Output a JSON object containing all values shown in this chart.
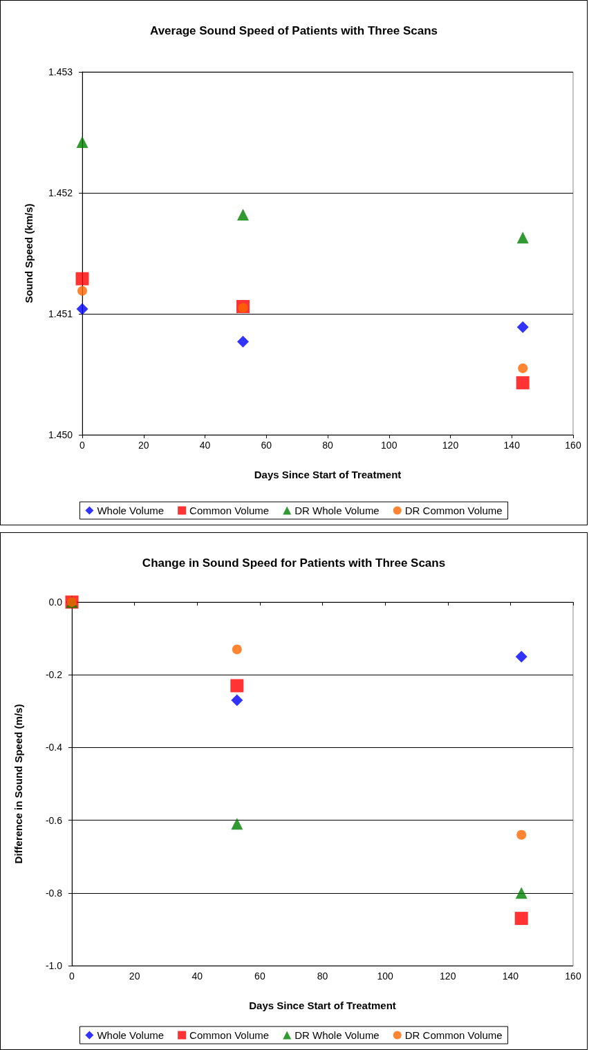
{
  "chart_data": [
    {
      "type": "scatter",
      "title": "Average Sound Speed of Patients with Three Scans",
      "xlabel": "Days Since Start of Treatment",
      "ylabel": "Sound Speed (km/s)",
      "xlim": [
        0,
        160
      ],
      "xticks": [
        0,
        20,
        40,
        60,
        80,
        100,
        120,
        140,
        160
      ],
      "ylim": [
        1.45,
        1.453
      ],
      "yticks": [
        {
          "value": 1.45,
          "label": "1.450"
        },
        {
          "value": 1.451,
          "label": "1.451"
        },
        {
          "value": 1.452,
          "label": "1.452"
        },
        {
          "value": 1.453,
          "label": "1.453"
        }
      ],
      "grid": "y",
      "legend": "bottom",
      "series": [
        {
          "name": "Whole Volume",
          "color": "#0000ff",
          "marker": "diamond",
          "x": [
            0,
            52.4,
            143.6
          ],
          "values": [
            1.45104,
            1.45077,
            1.45089
          ]
        },
        {
          "name": "Common Volume",
          "color": "#ff0000",
          "marker": "square",
          "x": [
            0,
            52.4,
            143.6
          ],
          "values": [
            1.45129,
            1.45106,
            1.45043
          ]
        },
        {
          "name": "DR Whole Volume",
          "color": "#008000",
          "marker": "triangle",
          "x": [
            0,
            52.4,
            143.6
          ],
          "values": [
            1.45242,
            1.45182,
            1.45163
          ]
        },
        {
          "name": "DR Common Volume",
          "color": "#ff6600",
          "marker": "circle",
          "x": [
            0,
            52.4,
            143.6
          ],
          "values": [
            1.45119,
            1.45105,
            1.45055
          ]
        }
      ]
    },
    {
      "type": "scatter",
      "title": "Change in Sound Speed for Patients with Three Scans",
      "xlabel": "Days Since Start of Treatment",
      "ylabel": "Difference in Sound Speed (m/s)",
      "xlim": [
        0,
        160
      ],
      "xticks": [
        0,
        20,
        40,
        60,
        80,
        100,
        120,
        140,
        160
      ],
      "ylim": [
        -1.0,
        0.0
      ],
      "yticks": [
        {
          "value": -1.0,
          "label": "-1.0"
        },
        {
          "value": -0.8,
          "label": "-0.8"
        },
        {
          "value": -0.6,
          "label": "-0.6"
        },
        {
          "value": -0.4,
          "label": "-0.4"
        },
        {
          "value": -0.2,
          "label": "-0.2"
        },
        {
          "value": 0.0,
          "label": "0.0"
        }
      ],
      "grid": "y",
      "legend": "bottom",
      "series": [
        {
          "name": "Whole Volume",
          "color": "#0000ff",
          "marker": "diamond",
          "x": [
            0,
            52.7,
            143.5
          ],
          "values": [
            0,
            -0.27,
            -0.15
          ]
        },
        {
          "name": "Common Volume",
          "color": "#ff0000",
          "marker": "square",
          "x": [
            0,
            52.7,
            143.5
          ],
          "values": [
            0,
            -0.23,
            -0.87
          ]
        },
        {
          "name": "DR Whole Volume",
          "color": "#008000",
          "marker": "triangle",
          "x": [
            0,
            52.7,
            143.5
          ],
          "values": [
            0,
            -0.61,
            -0.8
          ]
        },
        {
          "name": "DR Common Volume",
          "color": "#ff6600",
          "marker": "circle",
          "x": [
            0,
            52.7,
            143.5
          ],
          "values": [
            0,
            -0.13,
            -0.64
          ]
        }
      ]
    }
  ]
}
